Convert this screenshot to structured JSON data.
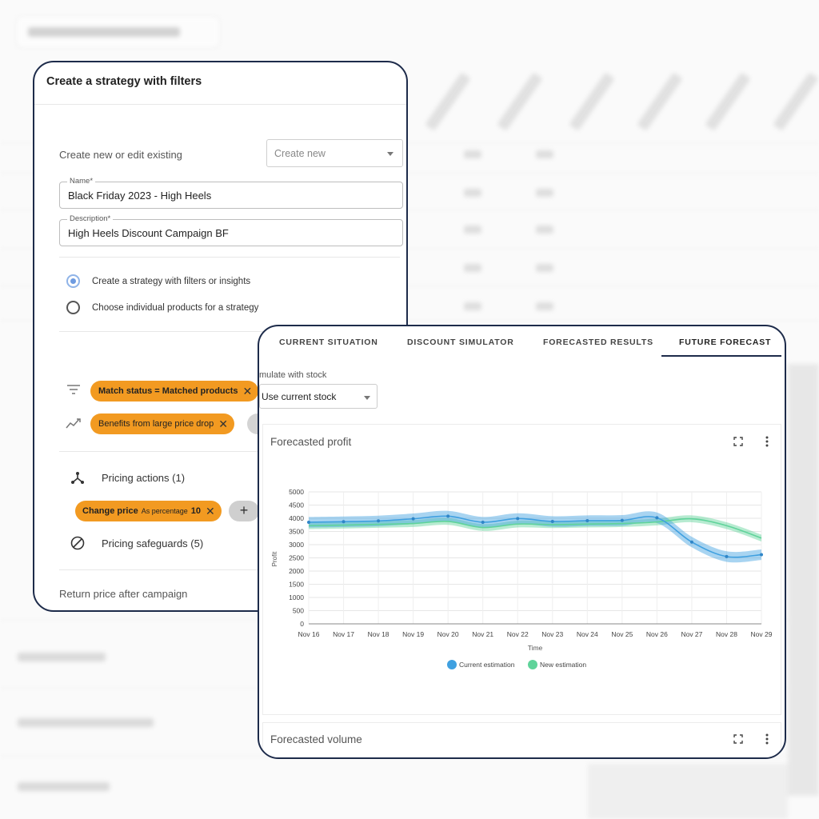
{
  "left_card": {
    "title": "Create a strategy with filters",
    "create_label": "Create new or edit existing",
    "create_select": "Create new",
    "name_label": "Name*",
    "name_value": "Black Friday 2023 - High Heels",
    "description_label": "Description*",
    "description_value": "High Heels Discount Campaign BF",
    "radio_filters": "Create a strategy with filters or insights",
    "radio_products": "Choose individual products for a strategy",
    "filter_chip_key": "Match status",
    "filter_chip_eq": " = ",
    "filter_chip_value": "Matched products",
    "insight_chip": "Benefits from large price drop",
    "pricing_actions": "Pricing actions (1)",
    "action_chip_main": "Change price",
    "action_chip_sub": "As percentage",
    "action_chip_value": "10",
    "plus": "+",
    "pricing_safeguards": "Pricing safeguards (5)",
    "return_price": "Return price after campaign"
  },
  "tabs": [
    {
      "label": "CURRENT SITUATION"
    },
    {
      "label": "DISCOUNT SIMULATOR"
    },
    {
      "label": "FORECASTED RESULTS"
    },
    {
      "label": "FUTURE FORECAST",
      "active": true
    }
  ],
  "stock": {
    "label": "mulate with stock",
    "value": "Use current stock"
  },
  "panels": {
    "profit_title": "Forecasted profit",
    "volume_title": "Forecasted volume"
  },
  "colors": {
    "accent": "#1d2b4a",
    "chip": "#f29a21",
    "current": "#3fa0e0",
    "new": "#5fd39a"
  },
  "chart_data": {
    "type": "line",
    "title": "",
    "xlabel": "Time",
    "ylabel": "Profit",
    "ylim": [
      0,
      5000
    ],
    "yticks": [
      0,
      500,
      1000,
      1500,
      2000,
      2500,
      3000,
      3500,
      4000,
      4500,
      5000
    ],
    "categories": [
      "Nov 16",
      "Nov 17",
      "Nov 18",
      "Nov 19",
      "Nov 20",
      "Nov 21",
      "Nov 22",
      "Nov 23",
      "Nov 24",
      "Nov 25",
      "Nov 26",
      "Nov 27",
      "Nov 28",
      "Nov 29"
    ],
    "grid": true,
    "legend": "bottom-center",
    "series": [
      {
        "name": "Current estimation",
        "values": [
          3850,
          3870,
          3900,
          3980,
          4080,
          3850,
          3990,
          3880,
          3910,
          3920,
          4020,
          3100,
          2550,
          2620
        ],
        "band": 200
      },
      {
        "name": "New estimation",
        "values": [
          3720,
          3740,
          3770,
          3800,
          3880,
          3650,
          3780,
          3760,
          3780,
          3800,
          3860,
          3980,
          3720,
          3250
        ],
        "band": 130
      }
    ]
  }
}
